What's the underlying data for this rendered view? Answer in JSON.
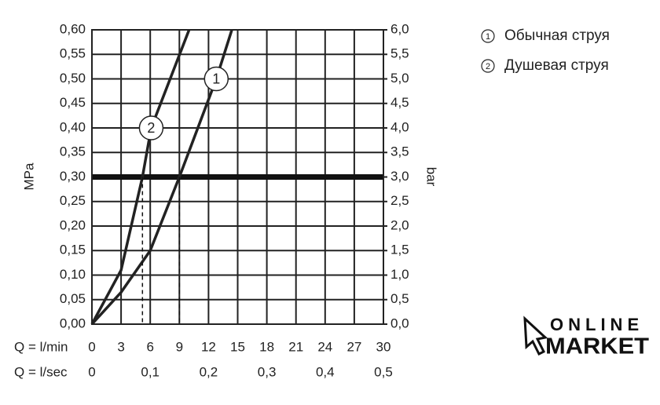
{
  "chart_data": {
    "type": "line",
    "xlabel": "Q = l/min",
    "x2label": "Q = l/sec",
    "ylabel": "MPa",
    "y2label": "bar",
    "xlim": [
      0,
      30
    ],
    "xticks": [
      0,
      3,
      6,
      9,
      12,
      15,
      18,
      21,
      24,
      27,
      30
    ],
    "x2lim": [
      0,
      0.5
    ],
    "x2ticks": [
      0,
      {
        "value": 0.1,
        "label": "0,1"
      },
      {
        "value": 0.2,
        "label": "0,2"
      },
      {
        "value": 0.3,
        "label": "0,3"
      },
      {
        "value": 0.4,
        "label": "0,4"
      },
      {
        "value": 0.5,
        "label": "0,5"
      }
    ],
    "ylim": [
      0,
      0.6
    ],
    "yticks": [
      {
        "value": 0,
        "label": "0,00"
      },
      {
        "value": 0.05,
        "label": "0,05"
      },
      {
        "value": 0.1,
        "label": "0,10"
      },
      {
        "value": 0.15,
        "label": "0,15"
      },
      {
        "value": 0.2,
        "label": "0,20"
      },
      {
        "value": 0.25,
        "label": "0,25"
      },
      {
        "value": 0.3,
        "label": "0,30"
      },
      {
        "value": 0.35,
        "label": "0,35"
      },
      {
        "value": 0.4,
        "label": "0,40"
      },
      {
        "value": 0.45,
        "label": "0,45"
      },
      {
        "value": 0.5,
        "label": "0,50"
      },
      {
        "value": 0.55,
        "label": "0,55"
      },
      {
        "value": 0.6,
        "label": "0,60"
      }
    ],
    "y2lim": [
      0,
      6
    ],
    "y2ticks": [
      {
        "value": 0,
        "label": "0,0"
      },
      {
        "value": 0.5,
        "label": "0,5"
      },
      {
        "value": 1,
        "label": "1,0"
      },
      {
        "value": 1.5,
        "label": "1,5"
      },
      {
        "value": 2,
        "label": "2,0"
      },
      {
        "value": 2.5,
        "label": "2,5"
      },
      {
        "value": 3,
        "label": "3,0"
      },
      {
        "value": 3.5,
        "label": "3,5"
      },
      {
        "value": 4,
        "label": "4,0"
      },
      {
        "value": 4.5,
        "label": "4,5"
      },
      {
        "value": 5,
        "label": "5,0"
      },
      {
        "value": 5.5,
        "label": "5,5"
      },
      {
        "value": 6,
        "label": "6,0"
      }
    ],
    "grid": true,
    "reference_line": 0.3,
    "series": [
      {
        "name": "Обычная струя",
        "marker": "1",
        "color": "#222222",
        "x": [
          0,
          3,
          6,
          9,
          12.8,
          14.4
        ],
        "values": [
          0,
          0.065,
          0.15,
          0.3,
          0.5,
          0.6
        ]
      },
      {
        "name": "Душевая струя",
        "marker": "2",
        "color": "#222222",
        "x": [
          0,
          3,
          5.2,
          6.1,
          10
        ],
        "values": [
          0,
          0.11,
          0.3,
          0.4,
          0.6
        ]
      }
    ]
  },
  "logo": {
    "line1": "ONLINE",
    "line2": "MARKET"
  }
}
